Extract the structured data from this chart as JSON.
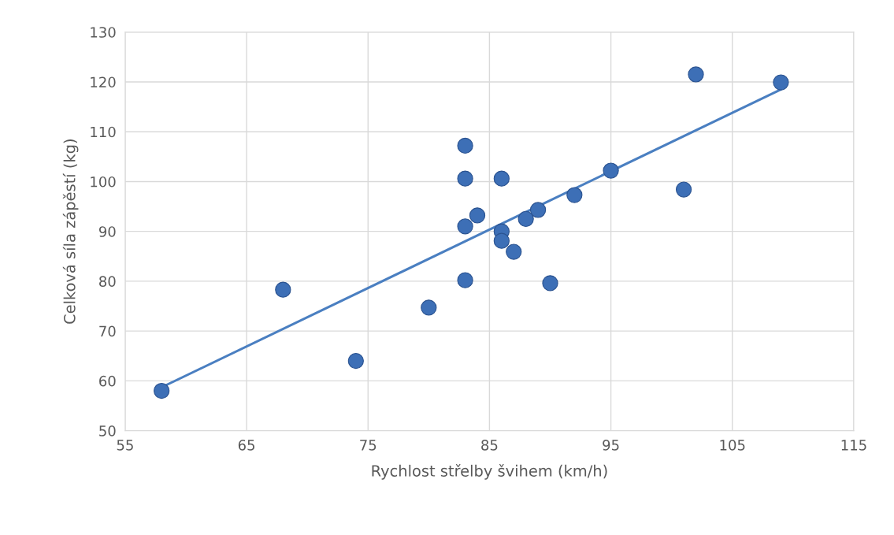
{
  "chart_data": {
    "type": "scatter",
    "xlabel": "Rychlost střelby švihem (km/h)",
    "ylabel": "Celková síla zápěstí (kg)",
    "xlim": [
      55,
      115
    ],
    "xticks": [
      55,
      65,
      75,
      85,
      95,
      105,
      115
    ],
    "ylim": [
      50,
      130
    ],
    "yticks": [
      50,
      60,
      70,
      80,
      90,
      100,
      110,
      120,
      130
    ],
    "grid": true,
    "series": [
      {
        "marker": "circle",
        "color": "#3d6fb6",
        "x": [
          58,
          68,
          74,
          80,
          83,
          83,
          83,
          83,
          84,
          86,
          86,
          86,
          87,
          88,
          89,
          90,
          92,
          95,
          101,
          102,
          109
        ],
        "values": [
          58,
          78.3,
          64,
          74.7,
          107.2,
          100.6,
          91,
          80.2,
          93.2,
          100.6,
          90,
          88.1,
          85.9,
          92.5,
          94.3,
          79.6,
          97.3,
          102.2,
          98.4,
          121.5,
          119.9
        ]
      },
      {
        "type": "line",
        "color": "#4a7fc1",
        "x": [
          58,
          109
        ],
        "values": [
          58.7,
          118.5
        ]
      }
    ]
  }
}
